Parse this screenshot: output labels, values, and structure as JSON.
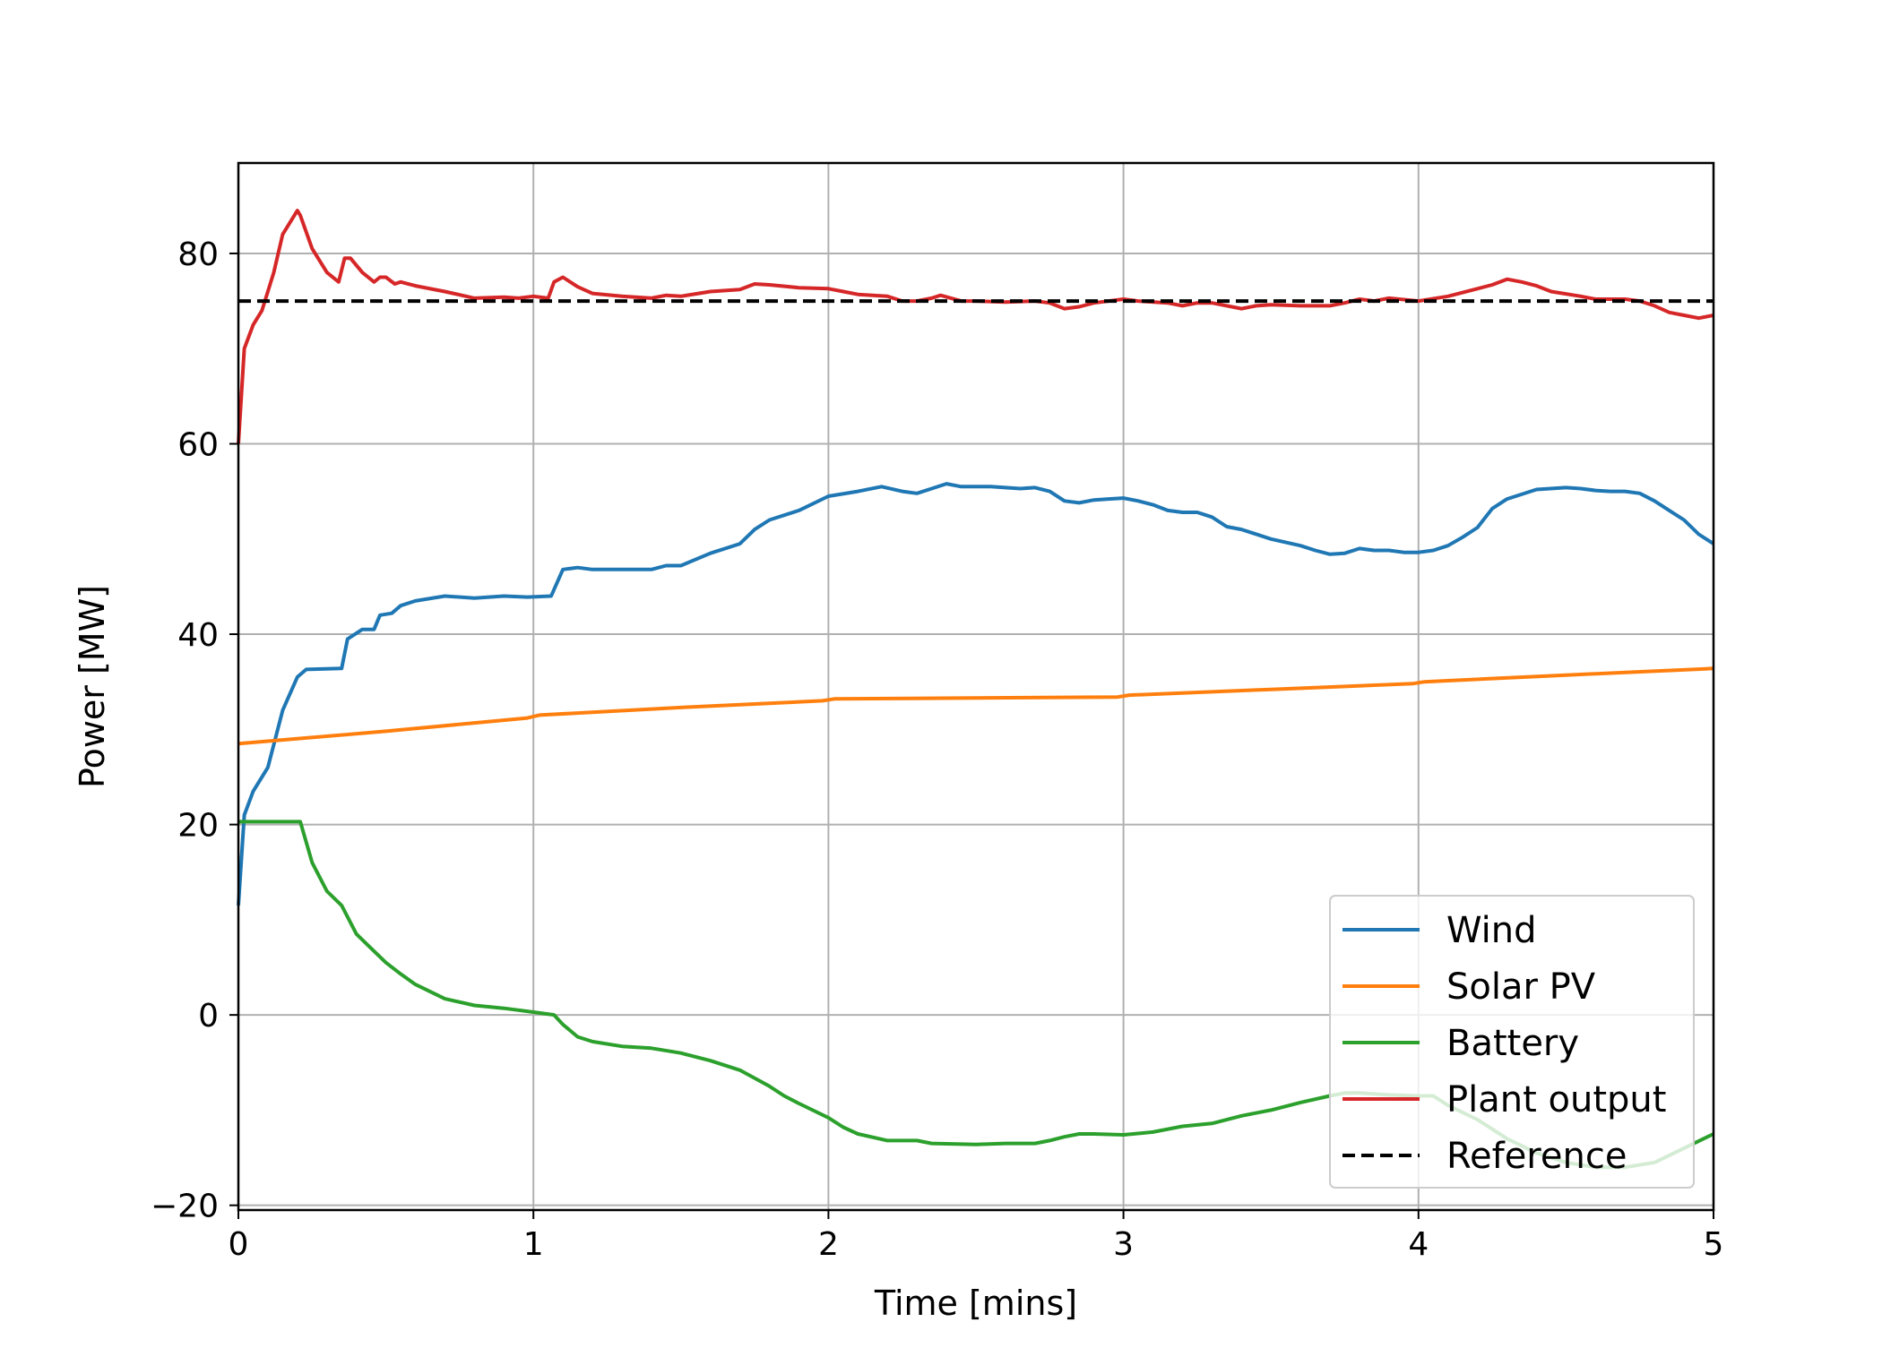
{
  "chart_data": {
    "type": "line",
    "title": "",
    "xlabel": "Time [mins]",
    "ylabel": "Power [MW]",
    "xlim": [
      0,
      5
    ],
    "ylim": [
      -20.5,
      89.5
    ],
    "xticks": [
      0,
      1,
      2,
      3,
      4,
      5
    ],
    "yticks": [
      -20,
      0,
      20,
      40,
      60,
      80
    ],
    "xtick_labels": [
      "0",
      "1",
      "2",
      "3",
      "4",
      "5"
    ],
    "ytick_labels": [
      "−20",
      "0",
      "20",
      "40",
      "60",
      "80"
    ],
    "grid": true,
    "legend_position": "lower-right",
    "series": [
      {
        "name": "Wind",
        "color": "#1f77b4",
        "dash": "solid",
        "points": [
          [
            0,
            11.5
          ],
          [
            0.02,
            21
          ],
          [
            0.05,
            23.5
          ],
          [
            0.1,
            26
          ],
          [
            0.15,
            32
          ],
          [
            0.2,
            35.5
          ],
          [
            0.23,
            36.3
          ],
          [
            0.35,
            36.4
          ],
          [
            0.37,
            39.5
          ],
          [
            0.42,
            40.5
          ],
          [
            0.46,
            40.5
          ],
          [
            0.48,
            42
          ],
          [
            0.52,
            42.2
          ],
          [
            0.55,
            43
          ],
          [
            0.6,
            43.5
          ],
          [
            0.7,
            44
          ],
          [
            0.8,
            43.8
          ],
          [
            0.9,
            44
          ],
          [
            0.98,
            43.9
          ],
          [
            1.06,
            44
          ],
          [
            1.1,
            46.8
          ],
          [
            1.15,
            47
          ],
          [
            1.2,
            46.8
          ],
          [
            1.3,
            46.8
          ],
          [
            1.4,
            46.8
          ],
          [
            1.45,
            47.2
          ],
          [
            1.5,
            47.2
          ],
          [
            1.6,
            48.5
          ],
          [
            1.7,
            49.5
          ],
          [
            1.75,
            51
          ],
          [
            1.8,
            52
          ],
          [
            1.9,
            53
          ],
          [
            2.0,
            54.5
          ],
          [
            2.1,
            55
          ],
          [
            2.18,
            55.5
          ],
          [
            2.25,
            55
          ],
          [
            2.3,
            54.8
          ],
          [
            2.35,
            55.3
          ],
          [
            2.4,
            55.8
          ],
          [
            2.45,
            55.5
          ],
          [
            2.55,
            55.5
          ],
          [
            2.65,
            55.3
          ],
          [
            2.7,
            55.4
          ],
          [
            2.75,
            55
          ],
          [
            2.8,
            54
          ],
          [
            2.85,
            53.8
          ],
          [
            2.9,
            54.1
          ],
          [
            2.95,
            54.2
          ],
          [
            3.0,
            54.3
          ],
          [
            3.05,
            54
          ],
          [
            3.1,
            53.6
          ],
          [
            3.15,
            53
          ],
          [
            3.2,
            52.8
          ],
          [
            3.25,
            52.8
          ],
          [
            3.3,
            52.3
          ],
          [
            3.35,
            51.3
          ],
          [
            3.4,
            51
          ],
          [
            3.5,
            50
          ],
          [
            3.6,
            49.3
          ],
          [
            3.65,
            48.8
          ],
          [
            3.7,
            48.4
          ],
          [
            3.75,
            48.5
          ],
          [
            3.8,
            49
          ],
          [
            3.85,
            48.8
          ],
          [
            3.9,
            48.8
          ],
          [
            3.95,
            48.6
          ],
          [
            4.0,
            48.6
          ],
          [
            4.05,
            48.8
          ],
          [
            4.1,
            49.3
          ],
          [
            4.15,
            50.2
          ],
          [
            4.2,
            51.2
          ],
          [
            4.25,
            53.2
          ],
          [
            4.3,
            54.2
          ],
          [
            4.4,
            55.2
          ],
          [
            4.5,
            55.4
          ],
          [
            4.55,
            55.3
          ],
          [
            4.6,
            55.1
          ],
          [
            4.65,
            55
          ],
          [
            4.7,
            55
          ],
          [
            4.75,
            54.8
          ],
          [
            4.8,
            54
          ],
          [
            4.85,
            53
          ],
          [
            4.9,
            52
          ],
          [
            4.95,
            50.5
          ],
          [
            5.0,
            49.5
          ]
        ]
      },
      {
        "name": "Solar PV",
        "color": "#ff7f0e",
        "dash": "solid",
        "points": [
          [
            0,
            28.5
          ],
          [
            0.5,
            29.8
          ],
          [
            0.98,
            31.2
          ],
          [
            1.02,
            31.5
          ],
          [
            1.5,
            32.3
          ],
          [
            1.98,
            33
          ],
          [
            2.02,
            33.2
          ],
          [
            2.5,
            33.3
          ],
          [
            2.98,
            33.4
          ],
          [
            3.02,
            33.6
          ],
          [
            3.5,
            34.2
          ],
          [
            3.98,
            34.8
          ],
          [
            4.02,
            35
          ],
          [
            4.5,
            35.7
          ],
          [
            5.0,
            36.4
          ]
        ]
      },
      {
        "name": "Battery",
        "color": "#2ca02c",
        "dash": "solid",
        "points": [
          [
            0,
            20.3
          ],
          [
            0.05,
            20.3
          ],
          [
            0.1,
            20.3
          ],
          [
            0.15,
            20.3
          ],
          [
            0.21,
            20.3
          ],
          [
            0.25,
            16
          ],
          [
            0.3,
            13
          ],
          [
            0.35,
            11.5
          ],
          [
            0.4,
            8.5
          ],
          [
            0.45,
            7
          ],
          [
            0.5,
            5.5
          ],
          [
            0.55,
            4.3
          ],
          [
            0.6,
            3.2
          ],
          [
            0.7,
            1.7
          ],
          [
            0.8,
            1
          ],
          [
            0.9,
            0.7
          ],
          [
            1.0,
            0.3
          ],
          [
            1.07,
            0
          ],
          [
            1.1,
            -1
          ],
          [
            1.15,
            -2.3
          ],
          [
            1.2,
            -2.8
          ],
          [
            1.3,
            -3.3
          ],
          [
            1.4,
            -3.5
          ],
          [
            1.5,
            -4
          ],
          [
            1.6,
            -4.8
          ],
          [
            1.7,
            -5.8
          ],
          [
            1.8,
            -7.5
          ],
          [
            1.85,
            -8.5
          ],
          [
            1.9,
            -9.3
          ],
          [
            2.0,
            -10.8
          ],
          [
            2.05,
            -11.8
          ],
          [
            2.1,
            -12.5
          ],
          [
            2.2,
            -13.2
          ],
          [
            2.3,
            -13.2
          ],
          [
            2.35,
            -13.5
          ],
          [
            2.5,
            -13.6
          ],
          [
            2.6,
            -13.5
          ],
          [
            2.7,
            -13.5
          ],
          [
            2.75,
            -13.2
          ],
          [
            2.8,
            -12.8
          ],
          [
            2.85,
            -12.5
          ],
          [
            2.9,
            -12.5
          ],
          [
            3.0,
            -12.6
          ],
          [
            3.1,
            -12.3
          ],
          [
            3.2,
            -11.7
          ],
          [
            3.3,
            -11.4
          ],
          [
            3.4,
            -10.6
          ],
          [
            3.5,
            -10
          ],
          [
            3.6,
            -9.2
          ],
          [
            3.7,
            -8.5
          ],
          [
            3.75,
            -8.2
          ],
          [
            3.8,
            -8.2
          ],
          [
            3.9,
            -8.4
          ],
          [
            4.0,
            -8.5
          ],
          [
            4.05,
            -8.5
          ],
          [
            4.1,
            -9.5
          ],
          [
            4.2,
            -11
          ],
          [
            4.3,
            -13
          ],
          [
            4.4,
            -14.5
          ],
          [
            4.5,
            -15.5
          ],
          [
            4.6,
            -16
          ],
          [
            4.7,
            -16
          ],
          [
            4.8,
            -15.5
          ],
          [
            4.9,
            -14
          ],
          [
            5.0,
            -12.5
          ]
        ]
      },
      {
        "name": "Plant output",
        "color": "#d62728",
        "dash": "solid",
        "points": [
          [
            0,
            60
          ],
          [
            0.02,
            70
          ],
          [
            0.05,
            72.5
          ],
          [
            0.08,
            74
          ],
          [
            0.12,
            78
          ],
          [
            0.15,
            82
          ],
          [
            0.2,
            84.5
          ],
          [
            0.21,
            84
          ],
          [
            0.25,
            80.5
          ],
          [
            0.3,
            78
          ],
          [
            0.34,
            77
          ],
          [
            0.36,
            79.5
          ],
          [
            0.38,
            79.5
          ],
          [
            0.42,
            78
          ],
          [
            0.46,
            77
          ],
          [
            0.48,
            77.5
          ],
          [
            0.5,
            77.5
          ],
          [
            0.53,
            76.8
          ],
          [
            0.55,
            77
          ],
          [
            0.6,
            76.6
          ],
          [
            0.7,
            76
          ],
          [
            0.8,
            75.3
          ],
          [
            0.9,
            75.4
          ],
          [
            0.95,
            75.3
          ],
          [
            1.0,
            75.5
          ],
          [
            1.05,
            75.3
          ],
          [
            1.07,
            77
          ],
          [
            1.1,
            77.5
          ],
          [
            1.15,
            76.5
          ],
          [
            1.2,
            75.8
          ],
          [
            1.3,
            75.5
          ],
          [
            1.4,
            75.3
          ],
          [
            1.45,
            75.6
          ],
          [
            1.5,
            75.5
          ],
          [
            1.6,
            76
          ],
          [
            1.7,
            76.2
          ],
          [
            1.75,
            76.8
          ],
          [
            1.8,
            76.7
          ],
          [
            1.9,
            76.4
          ],
          [
            2.0,
            76.3
          ],
          [
            2.05,
            76
          ],
          [
            2.1,
            75.7
          ],
          [
            2.2,
            75.5
          ],
          [
            2.25,
            75
          ],
          [
            2.3,
            75
          ],
          [
            2.35,
            75.3
          ],
          [
            2.38,
            75.6
          ],
          [
            2.45,
            75
          ],
          [
            2.5,
            75
          ],
          [
            2.6,
            74.9
          ],
          [
            2.7,
            75
          ],
          [
            2.75,
            74.8
          ],
          [
            2.8,
            74.2
          ],
          [
            2.85,
            74.4
          ],
          [
            2.9,
            74.8
          ],
          [
            3.0,
            75.2
          ],
          [
            3.05,
            75
          ],
          [
            3.15,
            74.8
          ],
          [
            3.2,
            74.5
          ],
          [
            3.25,
            74.8
          ],
          [
            3.3,
            74.8
          ],
          [
            3.4,
            74.2
          ],
          [
            3.45,
            74.5
          ],
          [
            3.5,
            74.6
          ],
          [
            3.6,
            74.5
          ],
          [
            3.7,
            74.5
          ],
          [
            3.75,
            74.8
          ],
          [
            3.8,
            75.2
          ],
          [
            3.85,
            75
          ],
          [
            3.9,
            75.3
          ],
          [
            4.0,
            75
          ],
          [
            4.1,
            75.5
          ],
          [
            4.2,
            76.3
          ],
          [
            4.25,
            76.7
          ],
          [
            4.3,
            77.3
          ],
          [
            4.35,
            77
          ],
          [
            4.4,
            76.6
          ],
          [
            4.45,
            76
          ],
          [
            4.55,
            75.5
          ],
          [
            4.6,
            75.2
          ],
          [
            4.7,
            75.2
          ],
          [
            4.75,
            75
          ],
          [
            4.8,
            74.5
          ],
          [
            4.85,
            73.8
          ],
          [
            4.9,
            73.5
          ],
          [
            4.95,
            73.2
          ],
          [
            5.0,
            73.5
          ]
        ]
      },
      {
        "name": "Reference",
        "color": "#000000",
        "dash": "dashed",
        "points": [
          [
            0,
            75
          ],
          [
            5,
            75
          ]
        ]
      }
    ]
  }
}
